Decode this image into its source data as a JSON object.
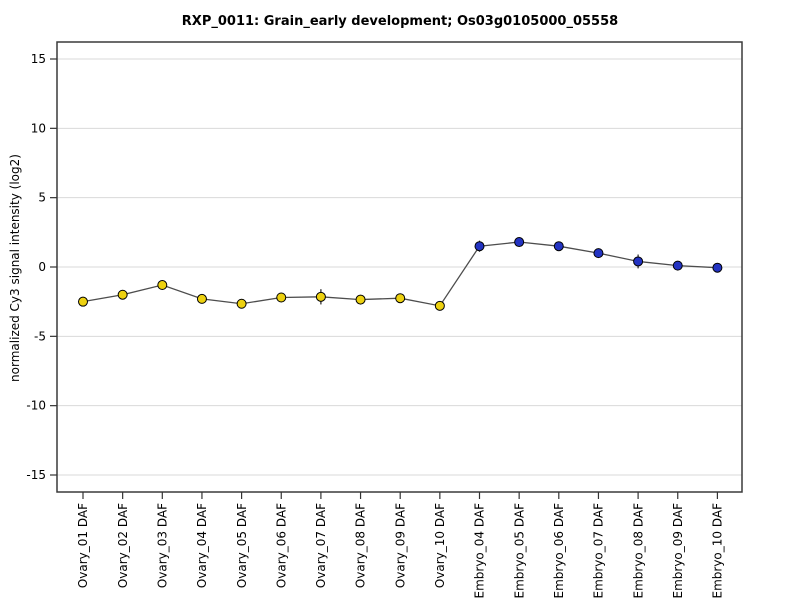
{
  "chart_data": {
    "type": "line",
    "title": "RXP_0011: Grain_early development; Os03g0105000_05558",
    "ylabel": "normalized Cy3 signal intensity (log2)",
    "xlabel": "",
    "categories": [
      "Ovary_01 DAF",
      "Ovary_02 DAF",
      "Ovary_03 DAF",
      "Ovary_04 DAF",
      "Ovary_05 DAF",
      "Ovary_06 DAF",
      "Ovary_07 DAF",
      "Ovary_08 DAF",
      "Ovary_09 DAF",
      "Ovary_10 DAF",
      "Embryo_04 DAF",
      "Embryo_05 DAF",
      "Embryo_06 DAF",
      "Embryo_07 DAF",
      "Embryo_08 DAF",
      "Embryo_09 DAF",
      "Embryo_10 DAF"
    ],
    "values": [
      -2.5,
      -2.0,
      -1.3,
      -2.3,
      -2.65,
      -2.2,
      -2.15,
      -2.35,
      -2.25,
      -2.8,
      1.5,
      1.8,
      1.5,
      1.0,
      0.4,
      0.1,
      -0.05
    ],
    "errors": [
      0.15,
      0.1,
      0.3,
      0.1,
      0.1,
      0.1,
      0.55,
      0.15,
      0.1,
      0.3,
      0.4,
      0.15,
      0.25,
      0.1,
      0.5,
      0.1,
      0.1
    ],
    "groups": [
      "Ovary",
      "Ovary",
      "Ovary",
      "Ovary",
      "Ovary",
      "Ovary",
      "Ovary",
      "Ovary",
      "Ovary",
      "Ovary",
      "Embryo",
      "Embryo",
      "Embryo",
      "Embryo",
      "Embryo",
      "Embryo",
      "Embryo"
    ],
    "group_colors": {
      "Ovary": "#EDD110",
      "Embryo": "#2333C2"
    },
    "point_outline_color": "#000000",
    "line_color": "#4D4D4D",
    "error_bar_color": "#222222",
    "grid": true,
    "grid_color": "#D9D9D9",
    "box_color": "#3A3A3A",
    "tick_color": "#333333",
    "yticks": [
      -15,
      -10,
      -5,
      0,
      5,
      10,
      15
    ],
    "ytick_labels": [
      "-15",
      "-10",
      "-5",
      "0",
      "5",
      "10",
      "15"
    ],
    "ylim": [
      -16.2,
      16.2
    ],
    "legend": "none"
  }
}
